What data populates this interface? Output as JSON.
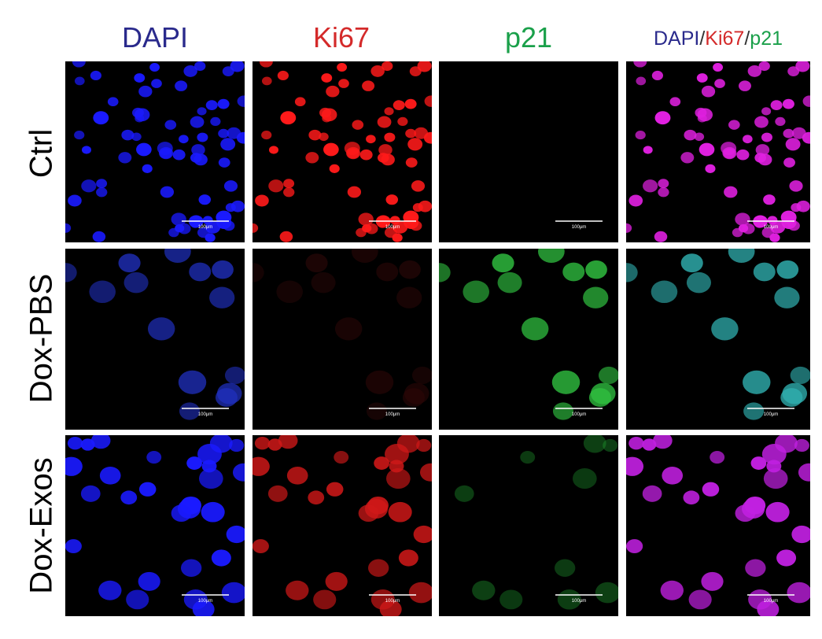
{
  "columns": [
    "DAPI",
    "Ki67",
    "p21"
  ],
  "merge_header": [
    "DAPI",
    "/",
    "Ki67",
    "/",
    "p21"
  ],
  "rows": [
    "Ctrl",
    "Dox-PBS",
    "Dox-Exos"
  ],
  "scale_bar_labels": [
    [
      "100μm",
      "100μm",
      "100μm",
      "100μm"
    ],
    [
      "100μm",
      "100μm",
      "100μm",
      "100μm"
    ],
    [
      "100μm",
      "100μm",
      "100μm",
      "100μm"
    ]
  ]
}
